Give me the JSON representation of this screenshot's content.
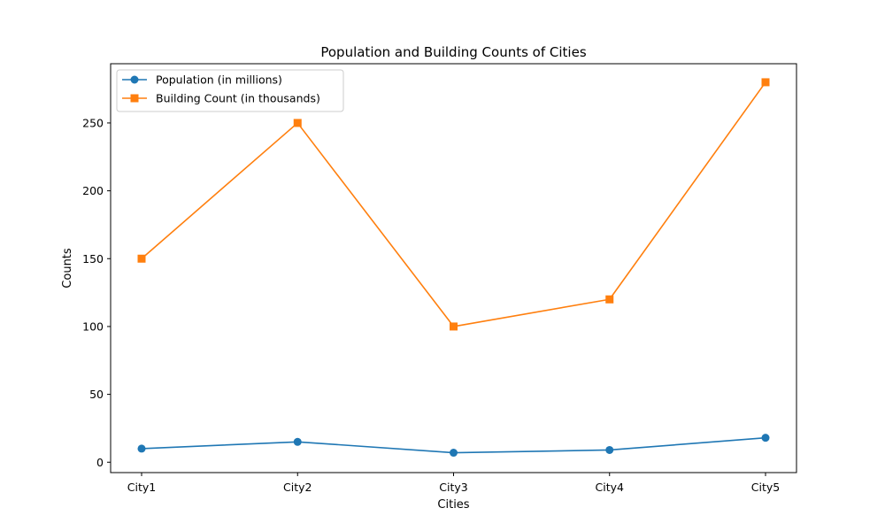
{
  "chart_data": {
    "type": "line",
    "title": "Population and Building Counts of Cities",
    "xlabel": "Cities",
    "ylabel": "Counts",
    "categories": [
      "City1",
      "City2",
      "City3",
      "City4",
      "City5"
    ],
    "ylim": [
      -7.65,
      293.65
    ],
    "yticks": [
      0,
      50,
      100,
      150,
      200,
      250
    ],
    "grid": false,
    "legend_placement": "upper-left",
    "series": [
      {
        "name": "Population (in millions)",
        "values": [
          10,
          15,
          7,
          9,
          18
        ],
        "color": "#1f77b4",
        "marker": "circle"
      },
      {
        "name": "Building Count (in thousands)",
        "values": [
          150,
          250,
          100,
          120,
          280
        ],
        "color": "#ff7f0e",
        "marker": "square"
      }
    ]
  }
}
